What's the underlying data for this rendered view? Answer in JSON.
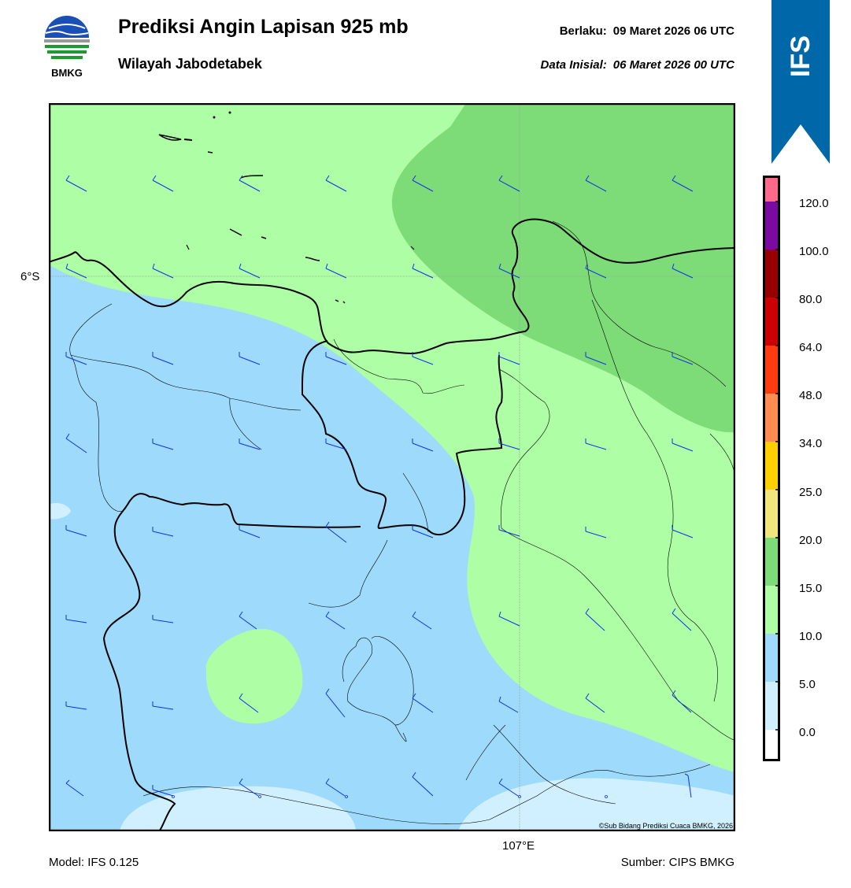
{
  "header": {
    "title": "Prediksi Angin Lapisan 925 mb",
    "subtitle": "Wilayah Jabodetabek",
    "valid_label": "Berlaku:",
    "valid_value": "09 Maret 2026 06 UTC",
    "init_label": "Data Inisial:",
    "init_value": "06 Maret 2026 00 UTC"
  },
  "logo": {
    "text": "BMKG",
    "icon": "bmkg-logo"
  },
  "ribbon": {
    "text": "IFS",
    "color": "#0068a8"
  },
  "axes": {
    "lat_label": "6°S",
    "lon_label": "107°E"
  },
  "footer": {
    "model": "Model: IFS 0.125",
    "source": "Sumber: CIPS BMKG",
    "copyright": "©Sub Bidang Prediksi Cuaca BMKG, 2026"
  },
  "colorbar": {
    "labels": [
      "120.0",
      "100.0",
      "80.0",
      "64.0",
      "48.0",
      "34.0",
      "25.0",
      "20.0",
      "15.0",
      "10.0",
      "5.0",
      "0.0"
    ],
    "colors": [
      "#ffffff",
      "#d0f0ff",
      "#9ddafc",
      "#adfea4",
      "#7edc78",
      "#f0e67c",
      "#ffd000",
      "#ff8c50",
      "#ff3c10",
      "#cc0000",
      "#990000",
      "#7b0aa0",
      "#ff6a8a"
    ]
  },
  "legend_colors": {
    "calm": "#d0f0ff",
    "light": "#9ddafc",
    "moderate": "#adfea4",
    "fresh": "#7edc78",
    "barb": "#1030ee"
  }
}
